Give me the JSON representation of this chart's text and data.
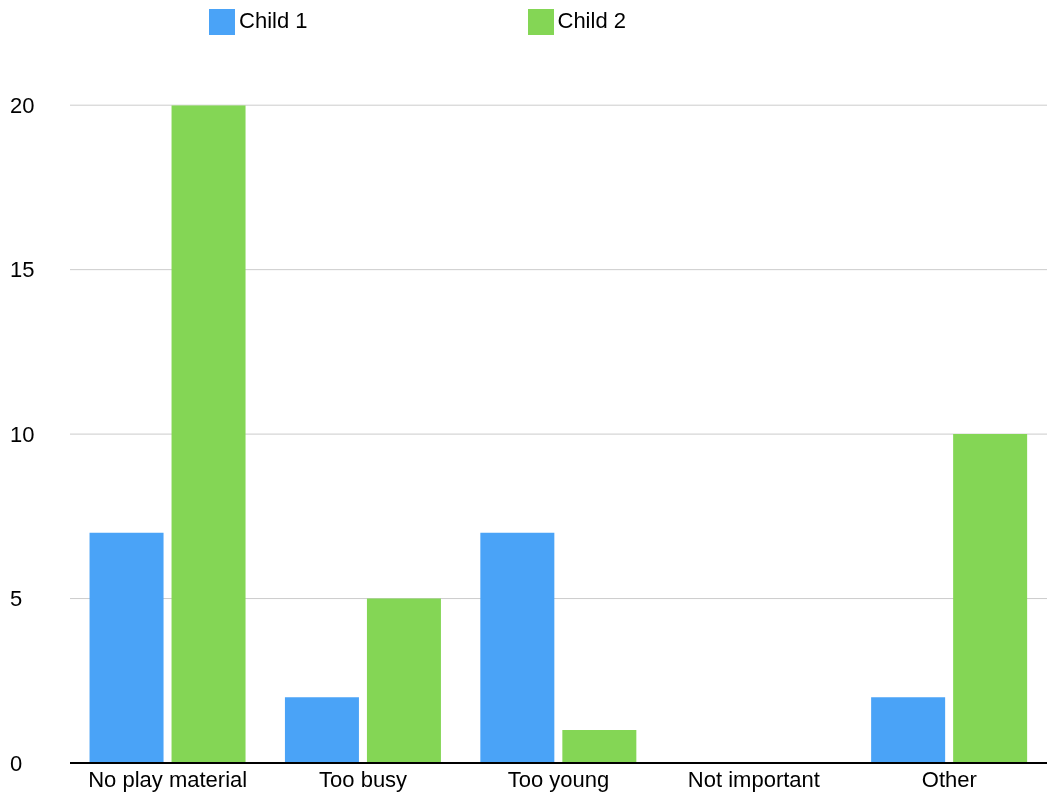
{
  "chart_data": {
    "type": "bar",
    "categories": [
      "No play material",
      "Too busy",
      "Too young",
      "Not important",
      "Other"
    ],
    "series": [
      {
        "name": "Child 1",
        "color": "#4aa3f7",
        "values": [
          7,
          2,
          7,
          0,
          2
        ]
      },
      {
        "name": "Child 2",
        "color": "#84d655",
        "values": [
          20,
          5,
          1,
          0,
          10
        ]
      }
    ],
    "ylim": [
      0,
      20
    ],
    "yticks": [
      0,
      5,
      10,
      15,
      20
    ],
    "grid": "y",
    "legend": "top"
  }
}
